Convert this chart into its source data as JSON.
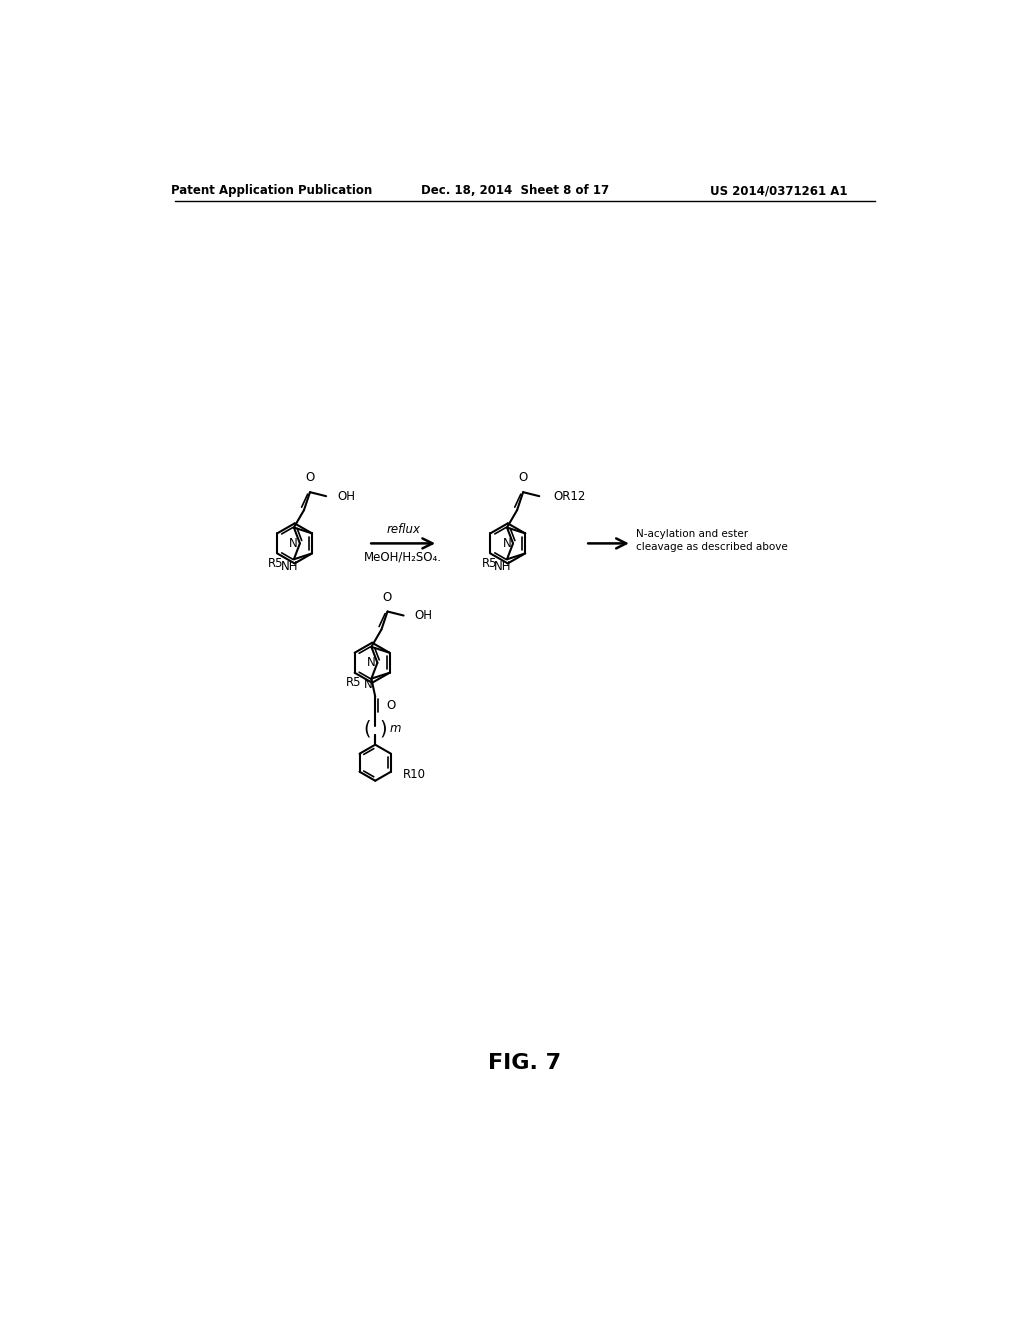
{
  "background_color": "#ffffff",
  "header_left": "Patent Application Publication",
  "header_center": "Dec. 18, 2014  Sheet 8 of 17",
  "header_right": "US 2014/0371261 A1",
  "figure_label": "FIG. 7",
  "reaction_label_above": "reflux",
  "reaction_label_below": "MeOH/H₂SO₄.",
  "second_arrow_label_line1": "N-acylation and ester",
  "second_arrow_label_line2": "cleavage as described above"
}
